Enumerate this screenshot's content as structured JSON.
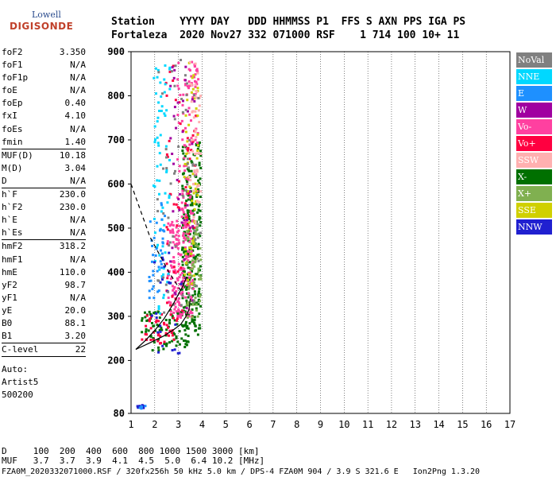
{
  "logo": {
    "line1": "Lowell",
    "line2": "DIGISONDE"
  },
  "header": {
    "line1": "Station    YYYY DAY   DDD HHMMSS P1  FFS S AXN PPS IGA PS",
    "line2": "Fortaleza  2020 Nov27 332 071000 RSF    1 714 100 10+ 11"
  },
  "params": [
    {
      "label": "foF2",
      "value": "3.350"
    },
    {
      "label": "foF1",
      "value": "N/A"
    },
    {
      "label": "foF1p",
      "value": "N/A"
    },
    {
      "label": "foE",
      "value": "N/A"
    },
    {
      "label": "foEp",
      "value": "0.40"
    },
    {
      "label": "fxI",
      "value": "4.10"
    },
    {
      "label": "foEs",
      "value": "N/A"
    },
    {
      "label": "fmin",
      "value": "1.40"
    },
    {
      "label": "MUF(D)",
      "value": "10.18",
      "sep": true
    },
    {
      "label": "M(D)",
      "value": "3.04"
    },
    {
      "label": "D",
      "value": "N/A"
    },
    {
      "label": "h`F",
      "value": "230.0",
      "sep": true
    },
    {
      "label": "h`F2",
      "value": "230.0"
    },
    {
      "label": "h`E",
      "value": "N/A"
    },
    {
      "label": "h`Es",
      "value": "N/A"
    },
    {
      "label": "hmF2",
      "value": "318.2",
      "sep": true
    },
    {
      "label": "hmF1",
      "value": "N/A"
    },
    {
      "label": "hmE",
      "value": "110.0"
    },
    {
      "label": "yF2",
      "value": "98.7"
    },
    {
      "label": "yF1",
      "value": "N/A"
    },
    {
      "label": "yE",
      "value": "20.0"
    },
    {
      "label": "B0",
      "value": "88.1"
    },
    {
      "label": "B1",
      "value": "3.20"
    },
    {
      "label": "C-level",
      "value": "22",
      "sep": true
    }
  ],
  "autoscaling": {
    "line1": "Auto:",
    "line2": "Artist5",
    "line3": "500200"
  },
  "legend": [
    {
      "name": "NoVal",
      "color": "#808080"
    },
    {
      "name": "NNE",
      "color": "#00d8ff"
    },
    {
      "name": "E",
      "color": "#1e90ff"
    },
    {
      "name": "W",
      "color": "#a000a0"
    },
    {
      "name": "Vo-",
      "color": "#ff40a0"
    },
    {
      "name": "Vo+",
      "color": "#ff0040"
    },
    {
      "name": "SSW",
      "color": "#ffb0b0"
    },
    {
      "name": "X-",
      "color": "#007000"
    },
    {
      "name": "X+",
      "color": "#80b050"
    },
    {
      "name": "SSE",
      "color": "#d0d000"
    },
    {
      "name": "NNW",
      "color": "#2020d0"
    }
  ],
  "muf_table": {
    "d_line": "D     100  200  400  600  800 1000 1500 3000 [km]",
    "muf_line": "MUF   3.7  3.7  3.9  4.1  4.5  5.0  6.4 10.2 [MHz]"
  },
  "footer": "FZA0M_2020332071000.RSF / 320fx256h 50 kHz 5.0 km / DPS-4 FZA0M 904 / 3.9 S 321.6 E   Ion2Png 1.3.20",
  "chart_data": {
    "type": "scatter",
    "title": "",
    "xlabel": "",
    "ylabel": "",
    "xlim": [
      1,
      17
    ],
    "ylim": [
      80,
      900
    ],
    "xticks": [
      1,
      2,
      3,
      4,
      5,
      6,
      7,
      8,
      9,
      10,
      11,
      12,
      13,
      14,
      15,
      16,
      17
    ],
    "yticks": [
      80,
      200,
      300,
      400,
      500,
      600,
      700,
      800,
      900
    ],
    "grid_x": true,
    "curves": [
      {
        "style": "solid",
        "x": [
          1.2,
          1.6,
          2.0,
          2.4,
          2.8,
          3.0,
          3.2,
          3.35
        ],
        "y": [
          225,
          245,
          268,
          295,
          330,
          350,
          370,
          390
        ]
      },
      {
        "style": "solid",
        "x": [
          1.2,
          1.8,
          2.4,
          2.8,
          3.1,
          3.3,
          3.45,
          3.5
        ],
        "y": [
          225,
          240,
          256,
          270,
          282,
          298,
          315,
          340
        ]
      },
      {
        "style": "dashed",
        "x": [
          1.0,
          1.4,
          1.8,
          2.2,
          2.6,
          2.9,
          3.2
        ],
        "y": [
          600,
          540,
          480,
          440,
          400,
          375,
          350
        ]
      }
    ],
    "clusters": [
      {
        "series": "X-",
        "x": [
          3.1,
          3.9
        ],
        "y": [
          260,
          700
        ],
        "n": 260
      },
      {
        "series": "X-",
        "x": [
          1.4,
          3.4
        ],
        "y": [
          225,
          320
        ],
        "n": 90
      },
      {
        "series": "Vo-",
        "x": [
          2.5,
          3.6
        ],
        "y": [
          300,
          520
        ],
        "n": 180
      },
      {
        "series": "Vo-",
        "x": [
          2.9,
          3.8
        ],
        "y": [
          520,
          880
        ],
        "n": 90
      },
      {
        "series": "Vo+",
        "x": [
          2.4,
          3.7
        ],
        "y": [
          290,
          880
        ],
        "n": 60
      },
      {
        "series": "Vo+",
        "x": [
          1.4,
          2.8
        ],
        "y": [
          240,
          310
        ],
        "n": 40
      },
      {
        "series": "X+",
        "x": [
          3.3,
          3.9
        ],
        "y": [
          300,
          500
        ],
        "n": 60
      },
      {
        "series": "SSE",
        "x": [
          3.2,
          3.8
        ],
        "y": [
          350,
          880
        ],
        "n": 60
      },
      {
        "series": "SSW",
        "x": [
          3.4,
          3.9
        ],
        "y": [
          500,
          880
        ],
        "n": 50
      },
      {
        "series": "NNE",
        "x": [
          1.9,
          2.6
        ],
        "y": [
          300,
          880
        ],
        "n": 70
      },
      {
        "series": "E",
        "x": [
          1.7,
          2.4
        ],
        "y": [
          340,
          560
        ],
        "n": 40
      },
      {
        "series": "W",
        "x": [
          2.6,
          3.7
        ],
        "y": [
          300,
          870
        ],
        "n": 40
      },
      {
        "series": "NNW",
        "x": [
          1.8,
          3.1
        ],
        "y": [
          200,
          460
        ],
        "n": 25
      },
      {
        "series": "NoVal",
        "x": [
          2.0,
          3.9
        ],
        "y": [
          300,
          890
        ],
        "n": 60
      },
      {
        "series": "NNW",
        "x": [
          1.2,
          1.5
        ],
        "y": [
          95,
          102
        ],
        "n": 8
      },
      {
        "series": "E",
        "x": [
          1.3,
          1.6
        ],
        "y": [
          93,
          100
        ],
        "n": 6
      }
    ]
  }
}
